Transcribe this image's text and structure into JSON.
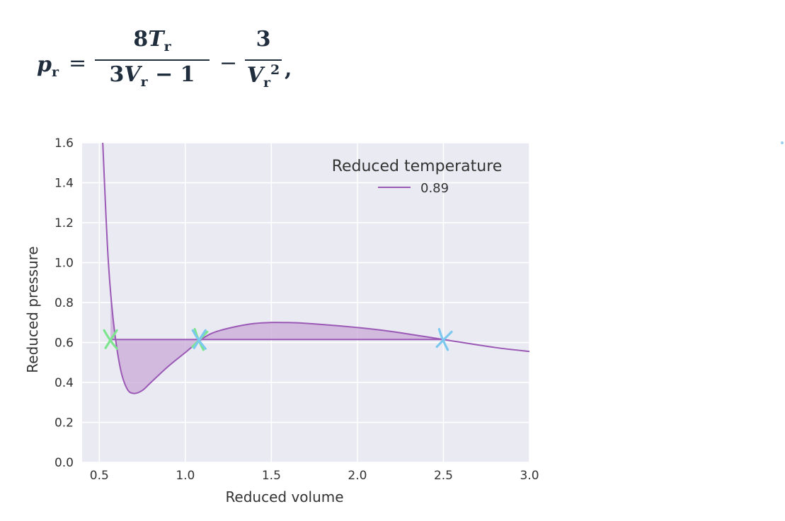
{
  "equation": {
    "lhs": "p",
    "lhs_sub": "r",
    "num1_coef": "8",
    "num1_var": "T",
    "num1_sub": "r",
    "den1_pre": "3",
    "den1_var": "V",
    "den1_sub": "r",
    "den1_post": " − 1",
    "num2": "3",
    "den2_var": "V",
    "den2_sub": "r",
    "den2_sup": "2",
    "equals": "=",
    "minus": "−",
    "comma": ","
  },
  "chart_data": {
    "type": "line",
    "title": "",
    "xlabel": "Reduced volume",
    "ylabel": "Reduced pressure",
    "xlim": [
      0.4,
      3.0
    ],
    "ylim": [
      0.0,
      1.6
    ],
    "xticks": [
      "0.5",
      "1.0",
      "1.5",
      "2.0",
      "2.5",
      "3.0"
    ],
    "yticks": [
      "0.0",
      "0.2",
      "0.4",
      "0.6",
      "0.8",
      "1.0",
      "1.2",
      "1.4",
      "1.6"
    ],
    "grid": true,
    "legend": {
      "title": "Reduced temperature",
      "placement": "top-right"
    },
    "series": [
      {
        "name": "0.89",
        "color": "#9b59b6",
        "x": [
          0.52,
          0.55,
          0.58,
          0.62,
          0.66,
          0.7,
          0.75,
          0.8,
          0.9,
          1.0,
          1.1,
          1.2,
          1.4,
          1.6,
          1.8,
          2.0,
          2.2,
          2.5,
          2.8,
          3.0
        ],
        "y": [
          1.6,
          1.04,
          0.72,
          0.48,
          0.37,
          0.345,
          0.36,
          0.4,
          0.48,
          0.55,
          0.62,
          0.66,
          0.695,
          0.7,
          0.69,
          0.675,
          0.655,
          0.615,
          0.575,
          0.555
        ]
      }
    ],
    "coexistence_line": {
      "y": 0.615,
      "x_from": 0.565,
      "x_to": 2.5
    },
    "shaded_color": "#c9a9d8",
    "markers": [
      {
        "x": 0.565,
        "y": 0.615,
        "color": "#7ee58f",
        "label": "X"
      },
      {
        "x": 1.08,
        "y": 0.615,
        "color": "#7ee58f",
        "label": "X"
      },
      {
        "x": 1.08,
        "y": 0.615,
        "color": "#7cc8ef",
        "label": "X"
      },
      {
        "x": 2.5,
        "y": 0.615,
        "color": "#7cc8ef",
        "label": "X"
      }
    ]
  }
}
